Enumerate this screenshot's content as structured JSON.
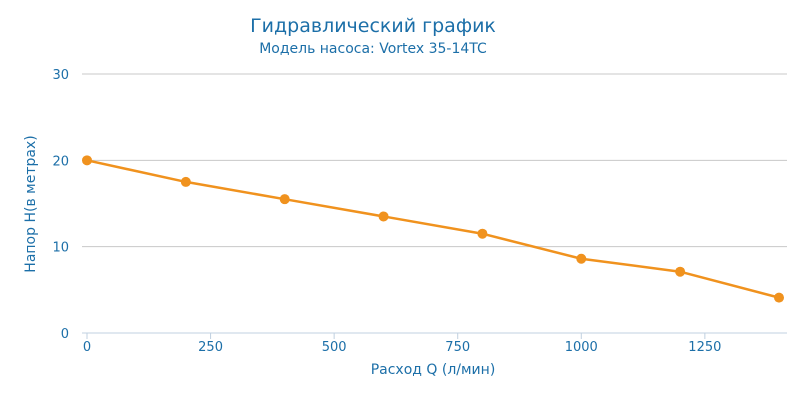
{
  "chart_data": {
    "type": "line",
    "title": "Гидравлический график",
    "subtitle": "Модель насоса: Vortex 35-14TC",
    "xlabel": "Расход Q (л/мин)",
    "ylabel": "Напор H(в метрах)",
    "xlim": [
      0,
      1400
    ],
    "ylim": [
      0,
      30
    ],
    "x_ticks": [
      0,
      250,
      500,
      750,
      1000,
      1250
    ],
    "y_ticks": [
      0,
      10,
      20,
      30
    ],
    "x_tick_labels": [
      "0",
      "250",
      "500",
      "750",
      "1000",
      "1250"
    ],
    "y_tick_labels": [
      "0",
      "10",
      "20",
      "30"
    ],
    "grid": true,
    "legend": false,
    "series": [
      {
        "color": "#f0921e",
        "points": [
          {
            "x": 0,
            "y": 20
          },
          {
            "x": 200,
            "y": 17.5
          },
          {
            "x": 400,
            "y": 15.5
          },
          {
            "x": 600,
            "y": 13.5
          },
          {
            "x": 800,
            "y": 11.5
          },
          {
            "x": 1000,
            "y": 8.6
          },
          {
            "x": 1200,
            "y": 7.1
          },
          {
            "x": 1400,
            "y": 4.1
          }
        ]
      }
    ],
    "colors": {
      "text": "#1c6fa8",
      "grid": "#c8c8c8",
      "axis": "#c0d0e0"
    }
  }
}
